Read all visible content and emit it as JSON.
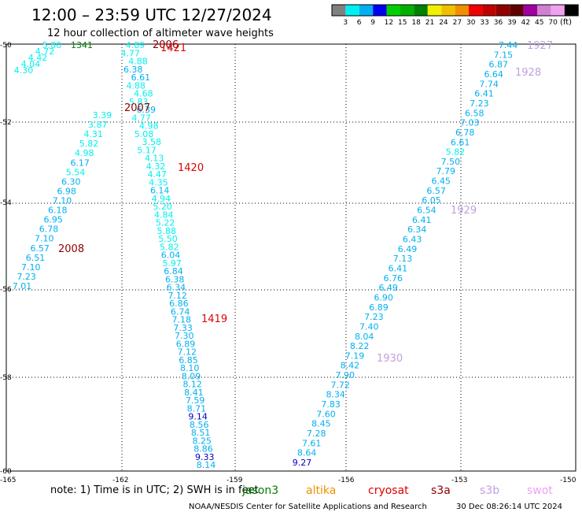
{
  "title": "12:00 – 23:59 UTC 12/27/2024",
  "subtitle": "12 hour collection of altimeter wave heights",
  "legend": {
    "unit": "(ft)",
    "colors": [
      "#808080",
      "#00f0f0",
      "#00b0f0",
      "#0000f0",
      "#00d000",
      "#00b000",
      "#008000",
      "#f0f000",
      "#f0c000",
      "#f09000",
      "#f00000",
      "#c00000",
      "#900000",
      "#600000",
      "#a000a0",
      "#d080d0",
      "#f0a0f0",
      "#000000"
    ],
    "ticks": [
      "3",
      "6",
      "9",
      "12",
      "15",
      "18",
      "21",
      "24",
      "27",
      "30",
      "33",
      "36",
      "39",
      "42",
      "45",
      "70"
    ]
  },
  "axes": {
    "lon_labels": [
      "-165",
      "-162",
      "-159",
      "-156",
      "-153",
      "-150"
    ],
    "lat_labels": [
      "-50",
      "-52",
      "-54",
      "-56",
      "-58",
      "-60"
    ]
  },
  "footer": {
    "note": "note:  1) Time is in UTC; 2) SWH is in feet",
    "satellites": [
      {
        "name": "jason3",
        "color": "#008000"
      },
      {
        "name": "altika",
        "color": "#f09000"
      },
      {
        "name": "cryosat",
        "color": "#e00000"
      },
      {
        "name": "s3a",
        "color": "#900000"
      },
      {
        "name": "s3b",
        "color": "#c0a0e0"
      },
      {
        "name": "swot",
        "color": "#f0a0f0"
      }
    ],
    "credit": "NOAA/NESDIS Center for Satellite Applications and Research",
    "timestamp": "30 Dec 08:26:14 UTC 2024"
  },
  "track_labels": [
    {
      "text": "1341",
      "color": "#008000"
    },
    {
      "text": "2006",
      "color": "#900000"
    },
    {
      "text": "1421",
      "color": "#e00000"
    },
    {
      "text": "2007",
      "color": "#900000"
    },
    {
      "text": "1420",
      "color": "#e00000"
    },
    {
      "text": "2008",
      "color": "#900000"
    },
    {
      "text": "1419",
      "color": "#e00000"
    },
    {
      "text": "1927",
      "color": "#c0a0e0"
    },
    {
      "text": "1928",
      "color": "#c0a0e0"
    },
    {
      "text": "1929",
      "color": "#c0a0e0"
    },
    {
      "text": "1930",
      "color": "#c0a0e0"
    }
  ],
  "tracks": [
    {
      "name": "track-2008",
      "values": [
        "5.80",
        "4.72",
        "4.42",
        "4.04",
        "4.30"
      ]
    },
    {
      "name": "track-2008-south",
      "values": [
        "3.39",
        "3.87",
        "4.31",
        "5.82",
        "4.98",
        "6.17",
        "5.54",
        "6.30",
        "6.98",
        "7.10",
        "6.18",
        "6.95",
        "6.78",
        "7.10",
        "6.57",
        "6.51",
        "7.10",
        "7.23",
        "7.01"
      ]
    },
    {
      "name": "track-2007",
      "values": [
        "4.89",
        "4.77",
        "4.88",
        "6.38",
        "6.61",
        "4.88",
        "4.68",
        "5.83",
        "6.39",
        "4.77",
        "4.98",
        "5.08",
        "3.58",
        "5.17",
        "4.13",
        "4.32",
        "4.47",
        "4.35",
        "6.14",
        "4.94",
        "5.20",
        "4.84",
        "5.22",
        "5.88",
        "5.50",
        "5.82",
        "6.04",
        "5.97",
        "6.84",
        "6.38",
        "6.34",
        "7.12",
        "6.86",
        "6.74",
        "7.18",
        "7.33",
        "7.30",
        "6.89",
        "7.12",
        "6.85",
        "8.10",
        "8.09",
        "8.12",
        "8.41",
        "7.59",
        "8.71",
        "9.14",
        "8.56",
        "8.51",
        "8.25",
        "8.86",
        "9.33",
        "8.14"
      ]
    },
    {
      "name": "track-1929",
      "values": [
        "7.44",
        "7.15",
        "6.87",
        "6.64",
        "7.74",
        "6.41",
        "7.23",
        "6.58",
        "7.03",
        "6.78",
        "6.61",
        "5.82",
        "7.50",
        "7.79",
        "6.45",
        "6.57",
        "6.05",
        "6.54",
        "6.41",
        "6.34",
        "6.43",
        "6.49",
        "7.13",
        "6.41",
        "6.76",
        "6.49",
        "6.90",
        "6.89",
        "7.23",
        "7.40",
        "8.04",
        "8.22",
        "7.19",
        "8.42",
        "7.90",
        "7.72",
        "8.34",
        "7.83",
        "7.60",
        "8.45",
        "7.28",
        "7.61",
        "8.64",
        "9.27"
      ]
    }
  ]
}
